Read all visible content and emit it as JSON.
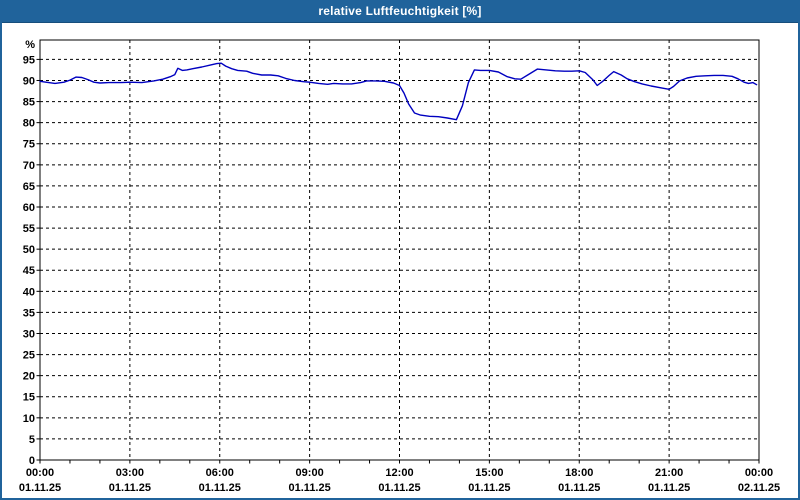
{
  "window": {
    "title": "relative Luftfeuchtigkeit [%]",
    "colors": {
      "titlebar_bg": "#20639b",
      "titlebar_text": "#ffffff",
      "window_border": "#20639b",
      "background": "#ffffff",
      "curve": "#0000c0",
      "grid": "#000000",
      "axis": "#000000",
      "label": "#000000"
    }
  },
  "chart_data": {
    "type": "line",
    "title": "relative Luftfeuchtigkeit [%]",
    "ylabel": "%",
    "xlabel": "",
    "legend": "none",
    "grid": "dashed",
    "ylim": [
      0,
      99.6
    ],
    "xlim_hours": [
      0,
      24
    ],
    "y_ticks": [
      0,
      5,
      10,
      15,
      20,
      25,
      30,
      35,
      40,
      45,
      50,
      55,
      60,
      65,
      70,
      75,
      80,
      85,
      90,
      95
    ],
    "x_ticks": [
      {
        "hour": 0,
        "time": "00:00",
        "date": "01.11.25"
      },
      {
        "hour": 3,
        "time": "03:00",
        "date": "01.11.25"
      },
      {
        "hour": 6,
        "time": "06:00",
        "date": "01.11.25"
      },
      {
        "hour": 9,
        "time": "09:00",
        "date": "01.11.25"
      },
      {
        "hour": 12,
        "time": "12:00",
        "date": "01.11.25"
      },
      {
        "hour": 15,
        "time": "15:00",
        "date": "01.11.25"
      },
      {
        "hour": 18,
        "time": "18:00",
        "date": "01.11.25"
      },
      {
        "hour": 21,
        "time": "21:00",
        "date": "01.11.25"
      },
      {
        "hour": 24,
        "time": "00:00",
        "date": "02.11.25"
      }
    ],
    "minor_x_tick_step_hours": 1,
    "series": [
      {
        "name": "relative Luftfeuchtigkeit",
        "unit": "%",
        "points": [
          [
            0.0,
            89.8
          ],
          [
            0.2,
            89.6
          ],
          [
            0.5,
            89.3
          ],
          [
            0.8,
            89.6
          ],
          [
            1.0,
            90.1
          ],
          [
            1.2,
            90.8
          ],
          [
            1.4,
            90.7
          ],
          [
            1.6,
            90.2
          ],
          [
            1.8,
            89.6
          ],
          [
            2.0,
            89.4
          ],
          [
            2.3,
            89.5
          ],
          [
            2.7,
            89.5
          ],
          [
            3.0,
            89.6
          ],
          [
            3.4,
            89.5
          ],
          [
            3.8,
            89.9
          ],
          [
            4.1,
            90.3
          ],
          [
            4.35,
            90.9
          ],
          [
            4.5,
            91.4
          ],
          [
            4.6,
            92.9
          ],
          [
            4.75,
            92.4
          ],
          [
            4.9,
            92.5
          ],
          [
            5.1,
            92.8
          ],
          [
            5.4,
            93.2
          ],
          [
            5.7,
            93.7
          ],
          [
            5.9,
            94.0
          ],
          [
            6.05,
            94.1
          ],
          [
            6.2,
            93.4
          ],
          [
            6.4,
            92.8
          ],
          [
            6.6,
            92.4
          ],
          [
            6.9,
            92.2
          ],
          [
            7.1,
            91.7
          ],
          [
            7.4,
            91.3
          ],
          [
            7.7,
            91.3
          ],
          [
            7.95,
            91.1
          ],
          [
            8.2,
            90.5
          ],
          [
            8.5,
            90.0
          ],
          [
            8.8,
            89.7
          ],
          [
            9.0,
            89.6
          ],
          [
            9.3,
            89.3
          ],
          [
            9.6,
            89.1
          ],
          [
            9.8,
            89.3
          ],
          [
            10.1,
            89.2
          ],
          [
            10.4,
            89.2
          ],
          [
            10.7,
            89.5
          ],
          [
            10.9,
            89.9
          ],
          [
            11.2,
            89.9
          ],
          [
            11.5,
            89.8
          ],
          [
            11.8,
            89.4
          ],
          [
            12.0,
            88.8
          ],
          [
            12.15,
            87.0
          ],
          [
            12.3,
            84.5
          ],
          [
            12.5,
            82.3
          ],
          [
            12.7,
            81.8
          ],
          [
            13.0,
            81.5
          ],
          [
            13.3,
            81.4
          ],
          [
            13.6,
            81.1
          ],
          [
            13.9,
            80.7
          ],
          [
            14.1,
            84.0
          ],
          [
            14.3,
            89.5
          ],
          [
            14.5,
            92.5
          ],
          [
            14.7,
            92.4
          ],
          [
            15.0,
            92.4
          ],
          [
            15.3,
            92.0
          ],
          [
            15.6,
            90.9
          ],
          [
            15.85,
            90.4
          ],
          [
            16.05,
            90.3
          ],
          [
            16.3,
            91.4
          ],
          [
            16.6,
            92.7
          ],
          [
            16.9,
            92.5
          ],
          [
            17.2,
            92.3
          ],
          [
            17.5,
            92.2
          ],
          [
            17.75,
            92.2
          ],
          [
            18.0,
            92.3
          ],
          [
            18.2,
            91.9
          ],
          [
            18.45,
            90.2
          ],
          [
            18.6,
            88.8
          ],
          [
            18.8,
            89.9
          ],
          [
            19.0,
            91.2
          ],
          [
            19.15,
            92.1
          ],
          [
            19.4,
            91.3
          ],
          [
            19.6,
            90.4
          ],
          [
            19.85,
            89.7
          ],
          [
            20.1,
            89.2
          ],
          [
            20.4,
            88.7
          ],
          [
            20.7,
            88.3
          ],
          [
            21.0,
            87.9
          ],
          [
            21.15,
            88.6
          ],
          [
            21.35,
            89.9
          ],
          [
            21.6,
            90.6
          ],
          [
            21.9,
            91.0
          ],
          [
            22.2,
            91.1
          ],
          [
            22.5,
            91.2
          ],
          [
            22.8,
            91.2
          ],
          [
            23.1,
            91.0
          ],
          [
            23.3,
            90.4
          ],
          [
            23.5,
            89.6
          ],
          [
            23.65,
            89.3
          ],
          [
            23.8,
            89.5
          ],
          [
            23.92,
            89.0
          ]
        ]
      }
    ]
  }
}
